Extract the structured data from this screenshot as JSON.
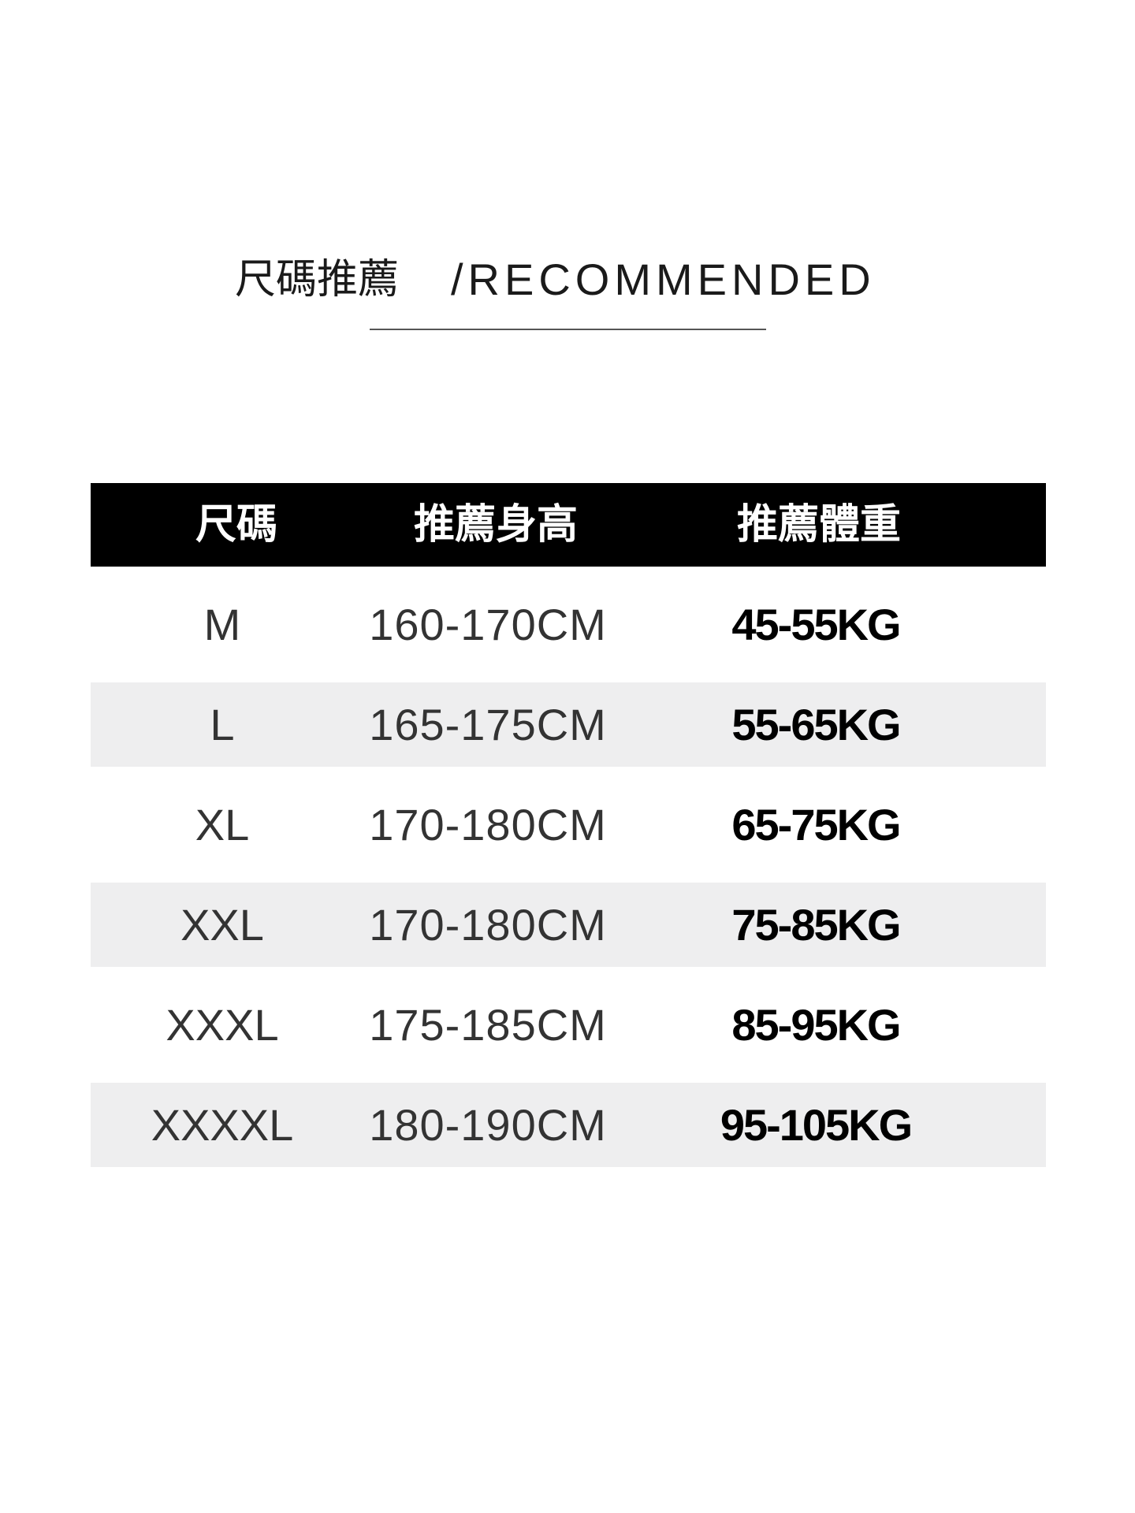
{
  "title": {
    "chinese": "尺碼推薦",
    "english": "/RECOMMENDED"
  },
  "table": {
    "headers": [
      "尺碼",
      "推薦身高",
      "推薦體重"
    ],
    "rows": [
      {
        "size": "M",
        "height": "160-170CM",
        "weight": "45-55KG"
      },
      {
        "size": "L",
        "height": "165-175CM",
        "weight": "55-65KG"
      },
      {
        "size": "XL",
        "height": "170-180CM",
        "weight": "65-75KG"
      },
      {
        "size": "XXL",
        "height": "170-180CM",
        "weight": "75-85KG"
      },
      {
        "size": "XXXL",
        "height": "175-185CM",
        "weight": "85-95KG"
      },
      {
        "size": "XXXXL",
        "height": "180-190CM",
        "weight": "95-105KG"
      }
    ]
  },
  "colors": {
    "header_bg": "#000000",
    "stripe_bg": "#eeeeef",
    "text": "#333333"
  }
}
